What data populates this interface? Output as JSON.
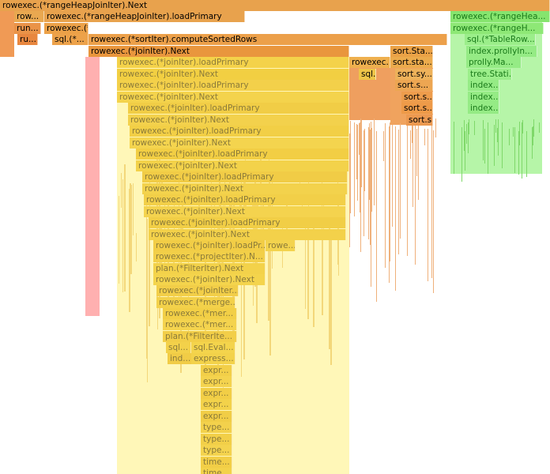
{
  "flame": {
    "colors": {
      "orange": "#e8a24d",
      "orange_dark": "#e07f3f",
      "orange_mid": "#eb9a4c",
      "yellow": "#f2cf3c",
      "yellow_pale": "#fbeea0",
      "yellow_light": "#fff3b0",
      "pink": "#ffb0b0",
      "green": "#a9f5a0",
      "green_dark": "#78e068"
    },
    "frames": [
      {
        "label": "rowexec.(*rangeHeapJoinIter).Next",
        "color": "#e8a24d"
      },
      {
        "label": "row...",
        "color": "#e9a850"
      },
      {
        "label": "rowexec.(*rangeHeapJoinIter).loadPrimary",
        "color": "#e8a24d"
      },
      {
        "label": "rowexec.(*rangeHea...",
        "color": "#86e46e"
      },
      {
        "label": "run...",
        "color": "#ea9348"
      },
      {
        "label": "rowexec.(*sortIter).Next",
        "color": "#eca148"
      },
      {
        "label": "rowexec.(*rangeH...",
        "color": "#8ee876"
      },
      {
        "label": "ru...",
        "color": "#e8873f"
      },
      {
        "label": "sql.(*...",
        "color": "#eda24a"
      },
      {
        "label": "rowexec.(*sortIter).computeSortedRows",
        "color": "#eca04a"
      },
      {
        "label": "sql.(*TableRow...",
        "color": "#9bee8a"
      },
      {
        "label": "rowexec.(*joinIter).Next",
        "color": "#e9963d"
      },
      {
        "label": "sort.Sta...",
        "color": "#eba246"
      },
      {
        "label": "index.prollyIn...",
        "color": "#95eb85"
      },
      {
        "label": "rowexec.(*joinIter).loadPrimary",
        "color": "#f4d24a"
      },
      {
        "label": "rowexec...",
        "color": "#efb04e"
      },
      {
        "label": "sort.sta...",
        "color": "#ecab4c"
      },
      {
        "label": "prolly.Ma...",
        "color": "#95eb85"
      },
      {
        "label": "rowexec.(*joinIter).Next",
        "color": "#f2cf42"
      },
      {
        "label": "sql.(*...",
        "color": "#eec548"
      },
      {
        "label": "sort.sy...",
        "color": "#eeb25a"
      },
      {
        "label": "tree.Stati...",
        "color": "#9bee8a"
      },
      {
        "label": "rowexec.(*joinIter).loadPrimary",
        "color": "#f3d04a"
      },
      {
        "label": "sort.s...",
        "color": "#eda652"
      },
      {
        "label": "index....",
        "color": "#95eb85"
      },
      {
        "label": "rowexec.(*joinIter).Next",
        "color": "#f4d34c"
      },
      {
        "label": "sort.s...",
        "color": "#ee9d4c"
      },
      {
        "label": "index....",
        "color": "#95eb85"
      },
      {
        "label": "rowexec.(*joinIter).loadPrimary",
        "color": "#f1cd46"
      },
      {
        "label": "sort.s...",
        "color": "#ee9a48"
      },
      {
        "label": "index....",
        "color": "#95eb85"
      },
      {
        "label": "rowexec.(*joinIter).Next",
        "color": "#f3d14c"
      },
      {
        "label": "sort.s...",
        "color": "#ec9950"
      },
      {
        "label": "rowexec.(*joinIter).loadPrimary",
        "color": "#f2cf46"
      },
      {
        "label": "rowexec.(*joinIter).Next",
        "color": "#f4d44e"
      },
      {
        "label": "rowexec.(*joinIter).loadPrimary",
        "color": "#f2ce44"
      },
      {
        "label": "rowexec.(*joinIter).Next",
        "color": "#f3d24a"
      },
      {
        "label": "rowexec.(*joinIter).loadPrimary",
        "color": "#f1cc46"
      },
      {
        "label": "rowexec.(*joinIter).Next",
        "color": "#f3d24c"
      },
      {
        "label": "rowexec.(*joinIter).loadPrimary",
        "color": "#f2cf48"
      },
      {
        "label": "rowexec.(*joinIter).Next",
        "color": "#f4d34e"
      },
      {
        "label": "rowexec.(*joinIter).loadPrimary",
        "color": "#f1ce46"
      },
      {
        "label": "rowexec.(*joinIter).Next",
        "color": "#f3d14a"
      },
      {
        "label": "rowexec.(*joinIter).loadPr...",
        "color": "#f2cd46"
      },
      {
        "label": "rowe...",
        "color": "#f3d34e"
      },
      {
        "label": "rowexec.(*projectIter).N...",
        "color": "#f2cf48"
      },
      {
        "label": "plan.(*FilterIter).Next",
        "color": "#f3d24a"
      },
      {
        "label": "rowexec.(*joinIter).Next",
        "color": "#f4d44c"
      },
      {
        "label": "rowexec.(*joinIter...",
        "color": "#f2ce48"
      },
      {
        "label": "rowexec.(*merge...",
        "color": "#f3d14a"
      },
      {
        "label": "rowexec.(*mer...",
        "color": "#f2cf46"
      },
      {
        "label": "rowexec.(*mer...",
        "color": "#f4d34e"
      },
      {
        "label": "plan.(*FilterIte...",
        "color": "#f2ce48"
      },
      {
        "label": "sql...",
        "color": "#f3d14a"
      },
      {
        "label": "sql.Eval...",
        "color": "#f4d44c"
      },
      {
        "label": "ind...",
        "color": "#f1cc46"
      },
      {
        "label": "express...",
        "color": "#f3d24a"
      },
      {
        "label": "expr...",
        "color": "#f2cf48"
      },
      {
        "label": "expr...",
        "color": "#f4d34e"
      },
      {
        "label": "expr...",
        "color": "#f2ce46"
      },
      {
        "label": "expr...",
        "color": "#f3d24a"
      },
      {
        "label": "expr...",
        "color": "#f1cd46"
      },
      {
        "label": "type...",
        "color": "#f3d14c"
      },
      {
        "label": "type...",
        "color": "#f2cf48"
      },
      {
        "label": "type...",
        "color": "#f4d34e"
      },
      {
        "label": "time...",
        "color": "#f2ce46"
      },
      {
        "label": "time...",
        "color": "#f3d24a"
      }
    ]
  }
}
